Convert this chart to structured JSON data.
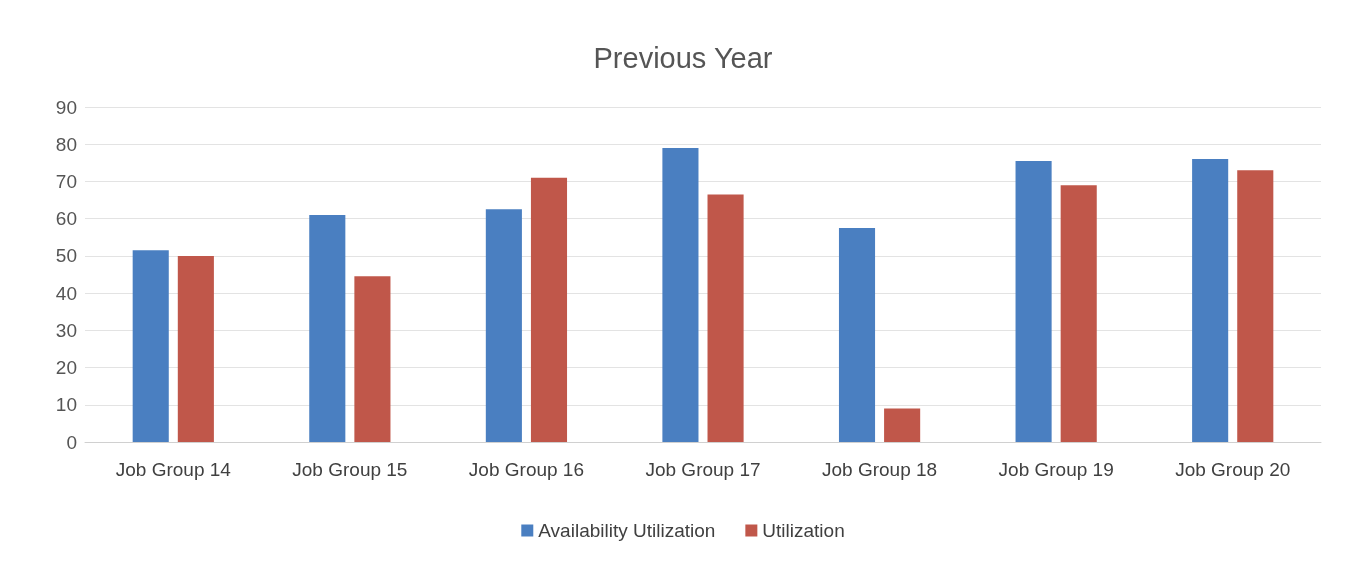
{
  "chart_data": {
    "type": "bar",
    "title": "Previous Year",
    "categories": [
      "Job Group 14",
      "Job Group 15",
      "Job Group 16",
      "Job Group 17",
      "Job Group 18",
      "Job Group 19",
      "Job Group 20"
    ],
    "series": [
      {
        "name": "Availability Utilization",
        "color": "#4a7fc1",
        "values": [
          51.5,
          61,
          62.5,
          79,
          57.5,
          75.5,
          76
        ]
      },
      {
        "name": "Utilization",
        "color": "#c0574a",
        "values": [
          50,
          44.5,
          71,
          66.5,
          9,
          69,
          73
        ]
      }
    ],
    "ylim": [
      0,
      90
    ],
    "yticks": [
      0,
      10,
      20,
      30,
      40,
      50,
      60,
      70,
      80,
      90
    ],
    "grid": "y",
    "legend": "bottom"
  }
}
